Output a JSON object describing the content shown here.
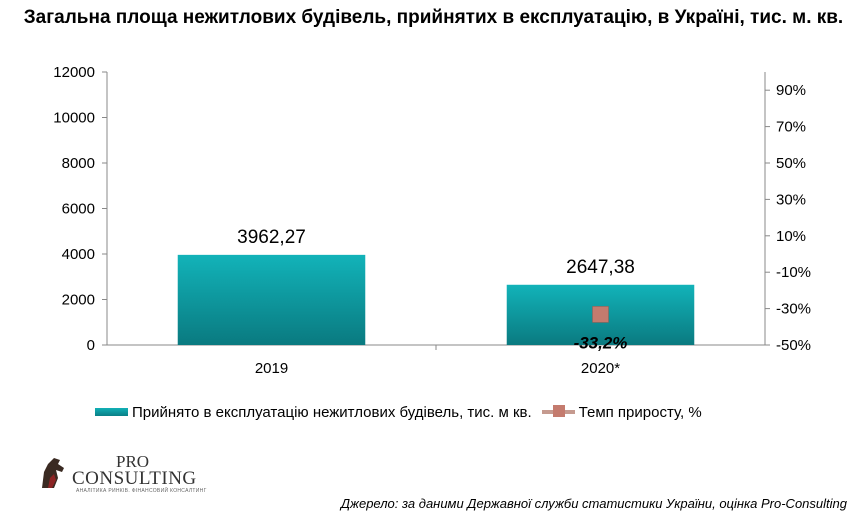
{
  "title": "Загальна площа нежитлових будівель, прийнятих в експлуатацію, в Україні, тис. м. кв.",
  "chart_data": {
    "type": "bar",
    "categories": [
      "2019",
      "2020*"
    ],
    "series": [
      {
        "name": "Прийнято  в експлуатацію  нежитлових  будівель, тис. м кв.",
        "type": "bar",
        "axis": "left",
        "values": [
          3962.27,
          2647.38
        ],
        "labels": [
          "3962,27",
          "2647,38"
        ],
        "color": "#0fa3aa"
      },
      {
        "name": "Темп  приросту, %",
        "type": "line",
        "axis": "right",
        "values": [
          null,
          -33.2
        ],
        "labels": [
          "",
          "-33,2%"
        ],
        "color": "#c47b6e"
      }
    ],
    "y_left": {
      "ylim": [
        0,
        12000
      ],
      "ticks": [
        0,
        2000,
        4000,
        6000,
        8000,
        10000,
        12000
      ],
      "tick_labels": [
        "0",
        "2000",
        "4000",
        "6000",
        "8000",
        "10000",
        "12000"
      ]
    },
    "y_right": {
      "ylim": [
        -50,
        100
      ],
      "ticks": [
        -50,
        -30,
        -10,
        10,
        30,
        50,
        70,
        90
      ],
      "tick_labels": [
        "-50%",
        "-30%",
        "-10%",
        "10%",
        "30%",
        "50%",
        "70%",
        "90%"
      ]
    },
    "grid": false,
    "legend": "bottom"
  },
  "logo": {
    "pro": "PRO",
    "consulting": "CONSULTING",
    "tagline": "АНАЛІТИКА РИНКІВ. ФІНАНСОВИЙ КОНСАЛТИНГ"
  },
  "source": "Джерело: за даними Державної служби статистики України, оцінка Pro-Consulting"
}
